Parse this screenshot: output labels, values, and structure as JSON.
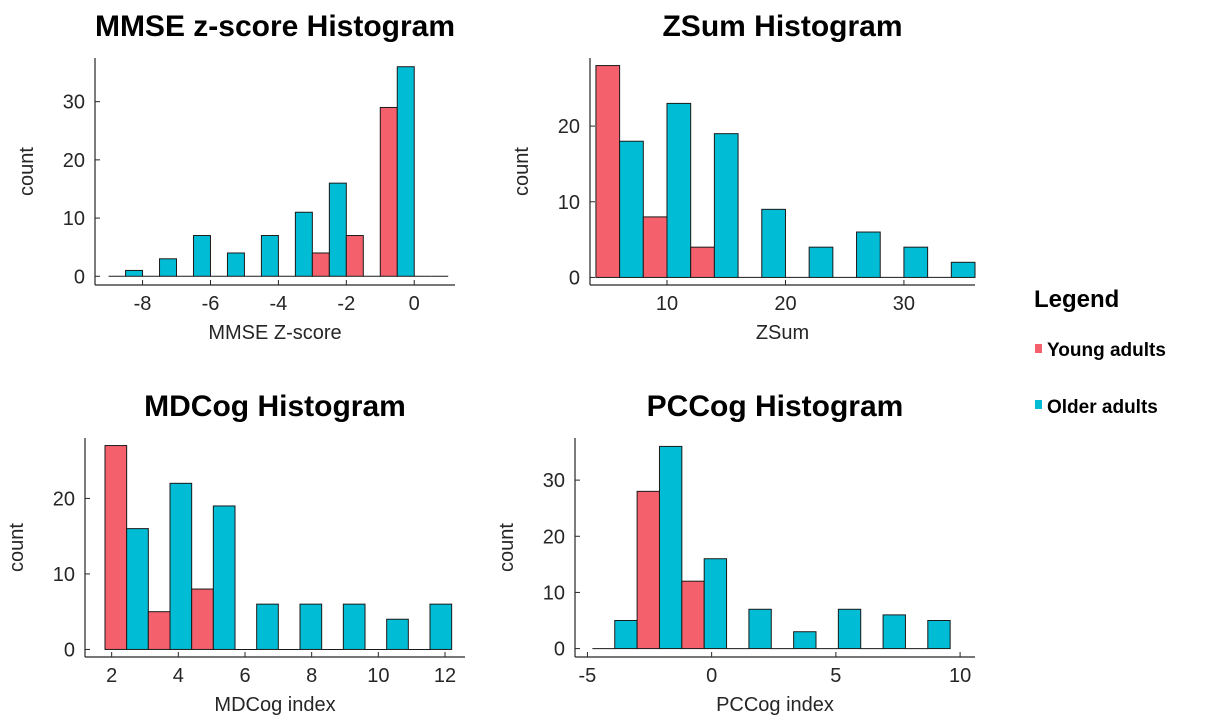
{
  "legend": {
    "title": "Legend",
    "items": [
      {
        "label": "Young adults",
        "color": "#F4606C"
      },
      {
        "label": "Older adults",
        "color": "#00BCD4"
      }
    ]
  },
  "chart_data": [
    {
      "type": "bar",
      "title": "MMSE z-score Histogram",
      "xlabel": "MMSE Z-score",
      "ylabel": "count",
      "xlim": [
        -9.4,
        1.2
      ],
      "ylim": [
        -1.5,
        37.5
      ],
      "xticks": [
        -8,
        -6,
        -4,
        -2,
        0
      ],
      "yticks": [
        0,
        10,
        20,
        30
      ],
      "bin_width": 1,
      "x": [
        -8.5,
        -7.5,
        -6.5,
        -5.5,
        -4.5,
        -3.5,
        -2.5,
        -1.5,
        -0.5,
        0.5
      ],
      "series": [
        {
          "name": "Young adults",
          "values": [
            0,
            0,
            0,
            0,
            0,
            0,
            4,
            7,
            29,
            0
          ]
        },
        {
          "name": "Older adults",
          "values": [
            1,
            3,
            7,
            4,
            7,
            11,
            16,
            0,
            36,
            0
          ]
        }
      ]
    },
    {
      "type": "bar",
      "title": "ZSum Histogram",
      "xlabel": "ZSum",
      "ylabel": "count",
      "xlim": [
        3.5,
        36
      ],
      "ylim": [
        -1,
        29
      ],
      "xticks": [
        10,
        20,
        30
      ],
      "yticks": [
        0,
        10,
        20
      ],
      "bin_width": 4,
      "x": [
        6,
        10,
        14,
        18,
        22,
        26,
        30,
        34
      ],
      "series": [
        {
          "name": "Young adults",
          "values": [
            28,
            8,
            4,
            0,
            0,
            0,
            0,
            0
          ]
        },
        {
          "name": "Older adults",
          "values": [
            18,
            23,
            19,
            9,
            4,
            6,
            4,
            2
          ]
        }
      ]
    },
    {
      "type": "bar",
      "title": "MDCog Histogram",
      "xlabel": "MDCog index",
      "ylabel": "count",
      "xlim": [
        1.2,
        12.6
      ],
      "ylim": [
        -1,
        28
      ],
      "xticks": [
        2,
        4,
        6,
        8,
        10,
        12
      ],
      "yticks": [
        0,
        10,
        20
      ],
      "bin_width": 1.3,
      "x": [
        2.45,
        3.75,
        5.05,
        6.35,
        7.65,
        8.95,
        10.25,
        11.55
      ],
      "series": [
        {
          "name": "Young adults",
          "values": [
            27,
            5,
            8,
            0,
            0,
            0,
            0,
            0
          ]
        },
        {
          "name": "Older adults",
          "values": [
            16,
            22,
            19,
            6,
            6,
            6,
            4,
            6
          ]
        }
      ]
    },
    {
      "type": "bar",
      "title": "PCCog Histogram",
      "xlabel": "PCCog index",
      "ylabel": "count",
      "xlim": [
        -5.5,
        10.6
      ],
      "ylim": [
        -1.5,
        37.5
      ],
      "xticks": [
        -5,
        0,
        5,
        10
      ],
      "yticks": [
        0,
        10,
        20,
        30
      ],
      "bin_width": 1.8,
      "x": [
        -3.9,
        -2.1,
        -0.3,
        1.5,
        3.3,
        5.1,
        6.9,
        8.7
      ],
      "series": [
        {
          "name": "Young adults",
          "values": [
            0,
            28,
            12,
            0,
            0,
            0,
            0,
            0
          ]
        },
        {
          "name": "Older adults",
          "values": [
            5,
            36,
            16,
            7,
            3,
            7,
            6,
            5
          ]
        }
      ]
    }
  ]
}
